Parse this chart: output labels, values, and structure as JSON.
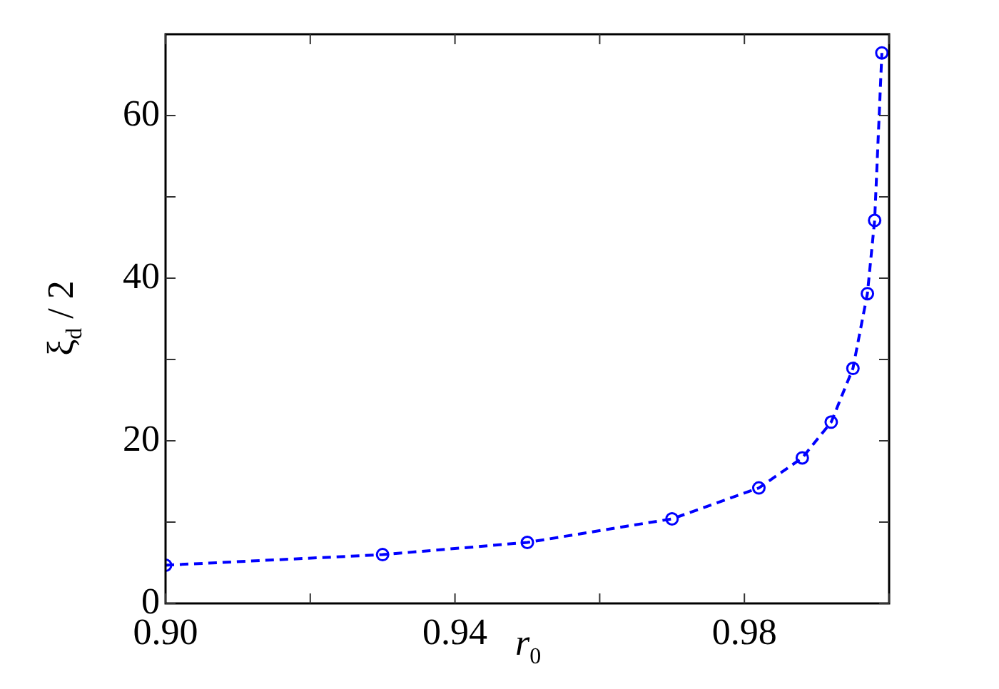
{
  "chart_data": {
    "type": "line",
    "xlabel": "r$_{0}$",
    "ylabel": "ξ$_{d}$ / 2",
    "x": [
      0.9,
      0.93,
      0.95,
      0.97,
      0.982,
      0.988,
      0.992,
      0.995,
      0.997,
      0.998,
      0.999
    ],
    "series": [
      {
        "color": "#0000ff",
        "values": [
          4.7,
          6.0,
          7.5,
          10.4,
          14.2,
          17.9,
          22.3,
          28.9,
          38.1,
          47.1,
          67.7
        ]
      }
    ],
    "xlim": [
      0.9,
      1.0
    ],
    "xticks": [
      {
        "value": 0.9,
        "label": "0.90"
      },
      {
        "value": 0.92,
        "label": null
      },
      {
        "value": 0.94,
        "label": "0.94"
      },
      {
        "value": 0.96,
        "label": null
      },
      {
        "value": 0.98,
        "label": "0.98"
      },
      {
        "value": 1.0,
        "label": null
      }
    ],
    "ylim": [
      0,
      70
    ],
    "yticks": [
      0,
      {
        "value": 10,
        "label": null
      },
      20,
      {
        "value": 30,
        "label": null
      },
      40,
      {
        "value": 50,
        "label": null
      },
      60
    ],
    "marker": "circle",
    "line_style": "dashed",
    "legend": false
  }
}
